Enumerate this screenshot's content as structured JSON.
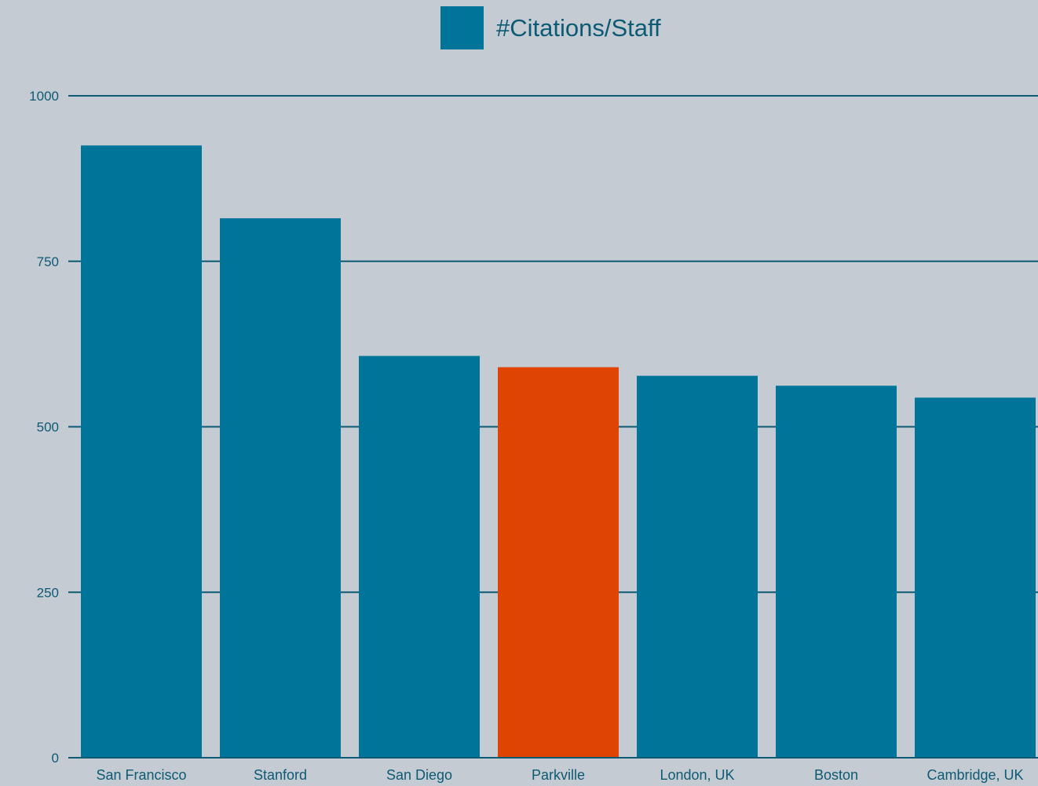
{
  "chart_data": {
    "type": "bar",
    "categories": [
      "San Francisco",
      "Stanford",
      "San Diego",
      "Parkville",
      "London, UK",
      "Boston",
      "Cambridge, UK"
    ],
    "series": [
      {
        "name": "#Citations/Staff",
        "values": [
          925,
          815,
          607,
          590,
          577,
          562,
          544
        ]
      }
    ],
    "highlight": {
      "category": "Parkville",
      "color": "#e04403"
    },
    "ylim": [
      0,
      1000
    ],
    "yticks": [
      0,
      250,
      500,
      750,
      1000
    ],
    "grid": true,
    "legend_position": "top-center",
    "colors": {
      "bar": "#007499",
      "highlight": "#e04403",
      "grid": "#0d5a75",
      "background": "#c4cbd2",
      "text": "#0d5a75"
    }
  }
}
